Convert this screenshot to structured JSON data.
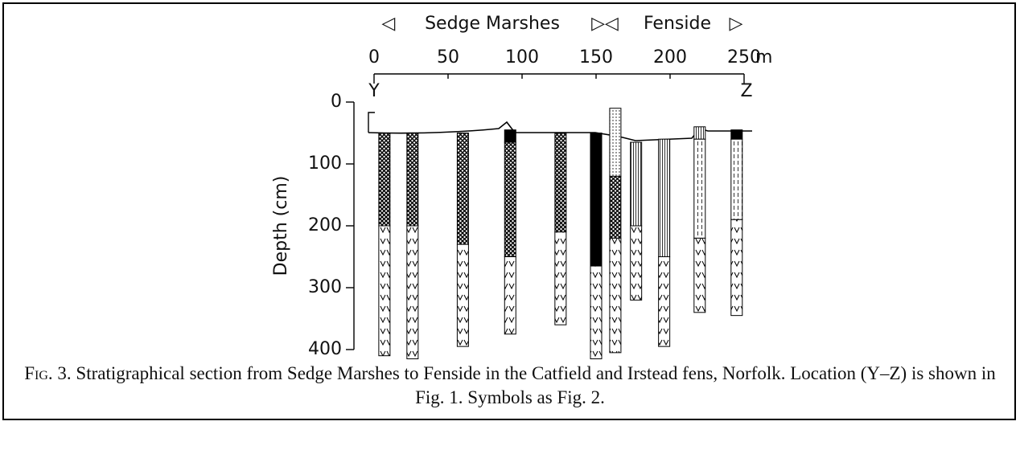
{
  "figure": {
    "regions": [
      "◁",
      "Sedge Marshes",
      "▷◁",
      "Fenside",
      "▷"
    ],
    "x_axis": {
      "ticks": [
        0,
        50,
        100,
        150,
        200,
        250
      ],
      "unit": "m",
      "lim": [
        0,
        250
      ]
    },
    "ends": [
      "Y",
      "Z"
    ],
    "y_axis": {
      "label": "Depth (cm)",
      "ticks": [
        0,
        100,
        200,
        300,
        400
      ],
      "lim": [
        0,
        400
      ]
    },
    "cores": [
      {
        "x": 7,
        "layers": [
          {
            "top": 50,
            "bottom": 200,
            "fill": "crosshatch"
          },
          {
            "top": 200,
            "bottom": 410,
            "fill": "reed"
          }
        ]
      },
      {
        "x": 26,
        "layers": [
          {
            "top": 50,
            "bottom": 200,
            "fill": "crosshatch"
          },
          {
            "top": 200,
            "bottom": 415,
            "fill": "reed"
          }
        ]
      },
      {
        "x": 60,
        "layers": [
          {
            "top": 50,
            "bottom": 230,
            "fill": "crosshatch"
          },
          {
            "top": 230,
            "bottom": 395,
            "fill": "reed"
          }
        ]
      },
      {
        "x": 92,
        "layers": [
          {
            "top": 45,
            "bottom": 65,
            "fill": "black"
          },
          {
            "top": 65,
            "bottom": 250,
            "fill": "crosshatch"
          },
          {
            "top": 250,
            "bottom": 375,
            "fill": "reed"
          }
        ]
      },
      {
        "x": 126,
        "layers": [
          {
            "top": 50,
            "bottom": 210,
            "fill": "crosshatch"
          },
          {
            "top": 210,
            "bottom": 360,
            "fill": "reed"
          }
        ]
      },
      {
        "x": 150,
        "layers": [
          {
            "top": 50,
            "bottom": 265,
            "fill": "black"
          },
          {
            "top": 265,
            "bottom": 415,
            "fill": "reed"
          }
        ]
      },
      {
        "x": 163,
        "layers": [
          {
            "top": 10,
            "bottom": 120,
            "fill": "sand"
          },
          {
            "top": 120,
            "bottom": 220,
            "fill": "crosshatch"
          },
          {
            "top": 220,
            "bottom": 405,
            "fill": "reed"
          }
        ]
      },
      {
        "x": 177,
        "layers": [
          {
            "top": 65,
            "bottom": 200,
            "fill": "lines"
          },
          {
            "top": 200,
            "bottom": 320,
            "fill": "reed"
          }
        ]
      },
      {
        "x": 196,
        "layers": [
          {
            "top": 60,
            "bottom": 250,
            "fill": "lines"
          },
          {
            "top": 250,
            "bottom": 395,
            "fill": "reed"
          }
        ]
      },
      {
        "x": 220,
        "layers": [
          {
            "top": 40,
            "bottom": 60,
            "fill": "lines"
          },
          {
            "top": 60,
            "bottom": 220,
            "fill": "dashes"
          },
          {
            "top": 220,
            "bottom": 340,
            "fill": "reed"
          }
        ]
      },
      {
        "x": 245,
        "layers": [
          {
            "top": 45,
            "bottom": 60,
            "fill": "black"
          },
          {
            "top": 60,
            "bottom": 190,
            "fill": "dashes"
          },
          {
            "top": 190,
            "bottom": 345,
            "fill": "reed"
          }
        ]
      }
    ],
    "caption": {
      "label": "Fig. 3.",
      "text": "Stratigraphical section from Sedge Marshes to Fenside in the Catfield and Irstead fens, Norfolk. Location (Y–Z) is shown in Fig. 1. Symbols as Fig. 2."
    }
  }
}
